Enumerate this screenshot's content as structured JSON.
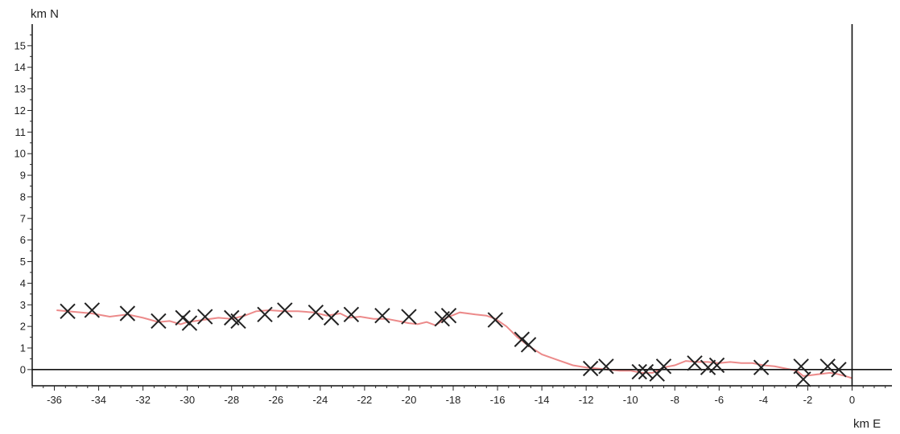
{
  "chart_data": {
    "type": "scatter",
    "xlabel": "km E",
    "ylabel": "km N",
    "xlim": [
      -37,
      1.8
    ],
    "ylim": [
      -0.75,
      16
    ],
    "x_ticks": [
      -36,
      -34,
      -32,
      -30,
      -28,
      -26,
      -24,
      -22,
      -20,
      -18,
      -16,
      -14,
      -12,
      -10,
      -8,
      -6,
      -4,
      -2,
      0
    ],
    "y_ticks": [
      0,
      1,
      2,
      3,
      4,
      5,
      6,
      7,
      8,
      9,
      10,
      11,
      12,
      13,
      14,
      15
    ],
    "grid": false,
    "legend": "none",
    "reference_lines": {
      "x0": 0,
      "y0": 0
    },
    "colors": {
      "track": "#ec8a8a",
      "markers": "#222222"
    },
    "series": [
      {
        "role": "markers",
        "marker": "x",
        "points": [
          [
            -35.4,
            2.7
          ],
          [
            -34.3,
            2.75
          ],
          [
            -32.7,
            2.6
          ],
          [
            -31.3,
            2.25
          ],
          [
            -30.2,
            2.4
          ],
          [
            -29.9,
            2.15
          ],
          [
            -29.2,
            2.45
          ],
          [
            -28.0,
            2.4
          ],
          [
            -27.7,
            2.25
          ],
          [
            -26.5,
            2.55
          ],
          [
            -25.6,
            2.75
          ],
          [
            -24.2,
            2.65
          ],
          [
            -23.5,
            2.4
          ],
          [
            -22.6,
            2.55
          ],
          [
            -21.2,
            2.5
          ],
          [
            -20.0,
            2.45
          ],
          [
            -18.5,
            2.35
          ],
          [
            -18.2,
            2.5
          ],
          [
            -16.1,
            2.3
          ],
          [
            -14.9,
            1.4
          ],
          [
            -14.6,
            1.15
          ],
          [
            -11.8,
            0.05
          ],
          [
            -11.1,
            0.15
          ],
          [
            -9.6,
            -0.1
          ],
          [
            -9.3,
            -0.1
          ],
          [
            -8.8,
            -0.2
          ],
          [
            -8.5,
            0.15
          ],
          [
            -7.1,
            0.3
          ],
          [
            -6.5,
            0.1
          ],
          [
            -6.1,
            0.2
          ],
          [
            -4.1,
            0.1
          ],
          [
            -2.3,
            0.15
          ],
          [
            -2.2,
            -0.45
          ],
          [
            -1.1,
            0.15
          ],
          [
            -0.6,
            0.0
          ]
        ]
      },
      {
        "role": "track",
        "points": [
          [
            -35.9,
            2.75
          ],
          [
            -35.4,
            2.7
          ],
          [
            -34.8,
            2.65
          ],
          [
            -34.3,
            2.6
          ],
          [
            -33.5,
            2.45
          ],
          [
            -32.7,
            2.55
          ],
          [
            -32.0,
            2.4
          ],
          [
            -31.3,
            2.2
          ],
          [
            -30.8,
            2.25
          ],
          [
            -30.3,
            2.1
          ],
          [
            -30.0,
            2.2
          ],
          [
            -29.3,
            2.3
          ],
          [
            -28.6,
            2.4
          ],
          [
            -28.0,
            2.35
          ],
          [
            -27.4,
            2.5
          ],
          [
            -26.9,
            2.7
          ],
          [
            -26.3,
            2.75
          ],
          [
            -25.6,
            2.7
          ],
          [
            -25.0,
            2.7
          ],
          [
            -24.3,
            2.65
          ],
          [
            -23.7,
            2.5
          ],
          [
            -23.1,
            2.6
          ],
          [
            -22.7,
            2.4
          ],
          [
            -22.2,
            2.45
          ],
          [
            -21.6,
            2.35
          ],
          [
            -21.0,
            2.35
          ],
          [
            -20.5,
            2.25
          ],
          [
            -20.0,
            2.15
          ],
          [
            -19.6,
            2.1
          ],
          [
            -19.2,
            2.2
          ],
          [
            -18.8,
            2.05
          ],
          [
            -18.3,
            2.4
          ],
          [
            -17.7,
            2.65
          ],
          [
            -17.0,
            2.55
          ],
          [
            -16.5,
            2.5
          ],
          [
            -16.1,
            2.35
          ],
          [
            -15.6,
            2.0
          ],
          [
            -15.1,
            1.5
          ],
          [
            -14.6,
            1.1
          ],
          [
            -14.0,
            0.7
          ],
          [
            -13.3,
            0.45
          ],
          [
            -12.6,
            0.2
          ],
          [
            -12.0,
            0.1
          ],
          [
            -11.5,
            0.05
          ],
          [
            -11.0,
            0.0
          ],
          [
            -10.5,
            -0.05
          ],
          [
            -10.0,
            -0.05
          ],
          [
            -9.5,
            -0.15
          ],
          [
            -9.0,
            -0.15
          ],
          [
            -8.5,
            0.1
          ],
          [
            -8.0,
            0.2
          ],
          [
            -7.5,
            0.4
          ],
          [
            -7.0,
            0.35
          ],
          [
            -6.5,
            0.35
          ],
          [
            -6.0,
            0.3
          ],
          [
            -5.5,
            0.35
          ],
          [
            -5.0,
            0.3
          ],
          [
            -4.5,
            0.3
          ],
          [
            -4.0,
            0.2
          ],
          [
            -3.5,
            0.15
          ],
          [
            -3.0,
            0.05
          ],
          [
            -2.5,
            -0.05
          ],
          [
            -2.2,
            -0.3
          ],
          [
            -1.8,
            -0.25
          ],
          [
            -1.4,
            -0.2
          ],
          [
            -1.0,
            -0.15
          ],
          [
            -0.7,
            -0.2
          ],
          [
            -0.3,
            -0.3
          ],
          [
            0.0,
            -0.4
          ]
        ]
      }
    ]
  }
}
